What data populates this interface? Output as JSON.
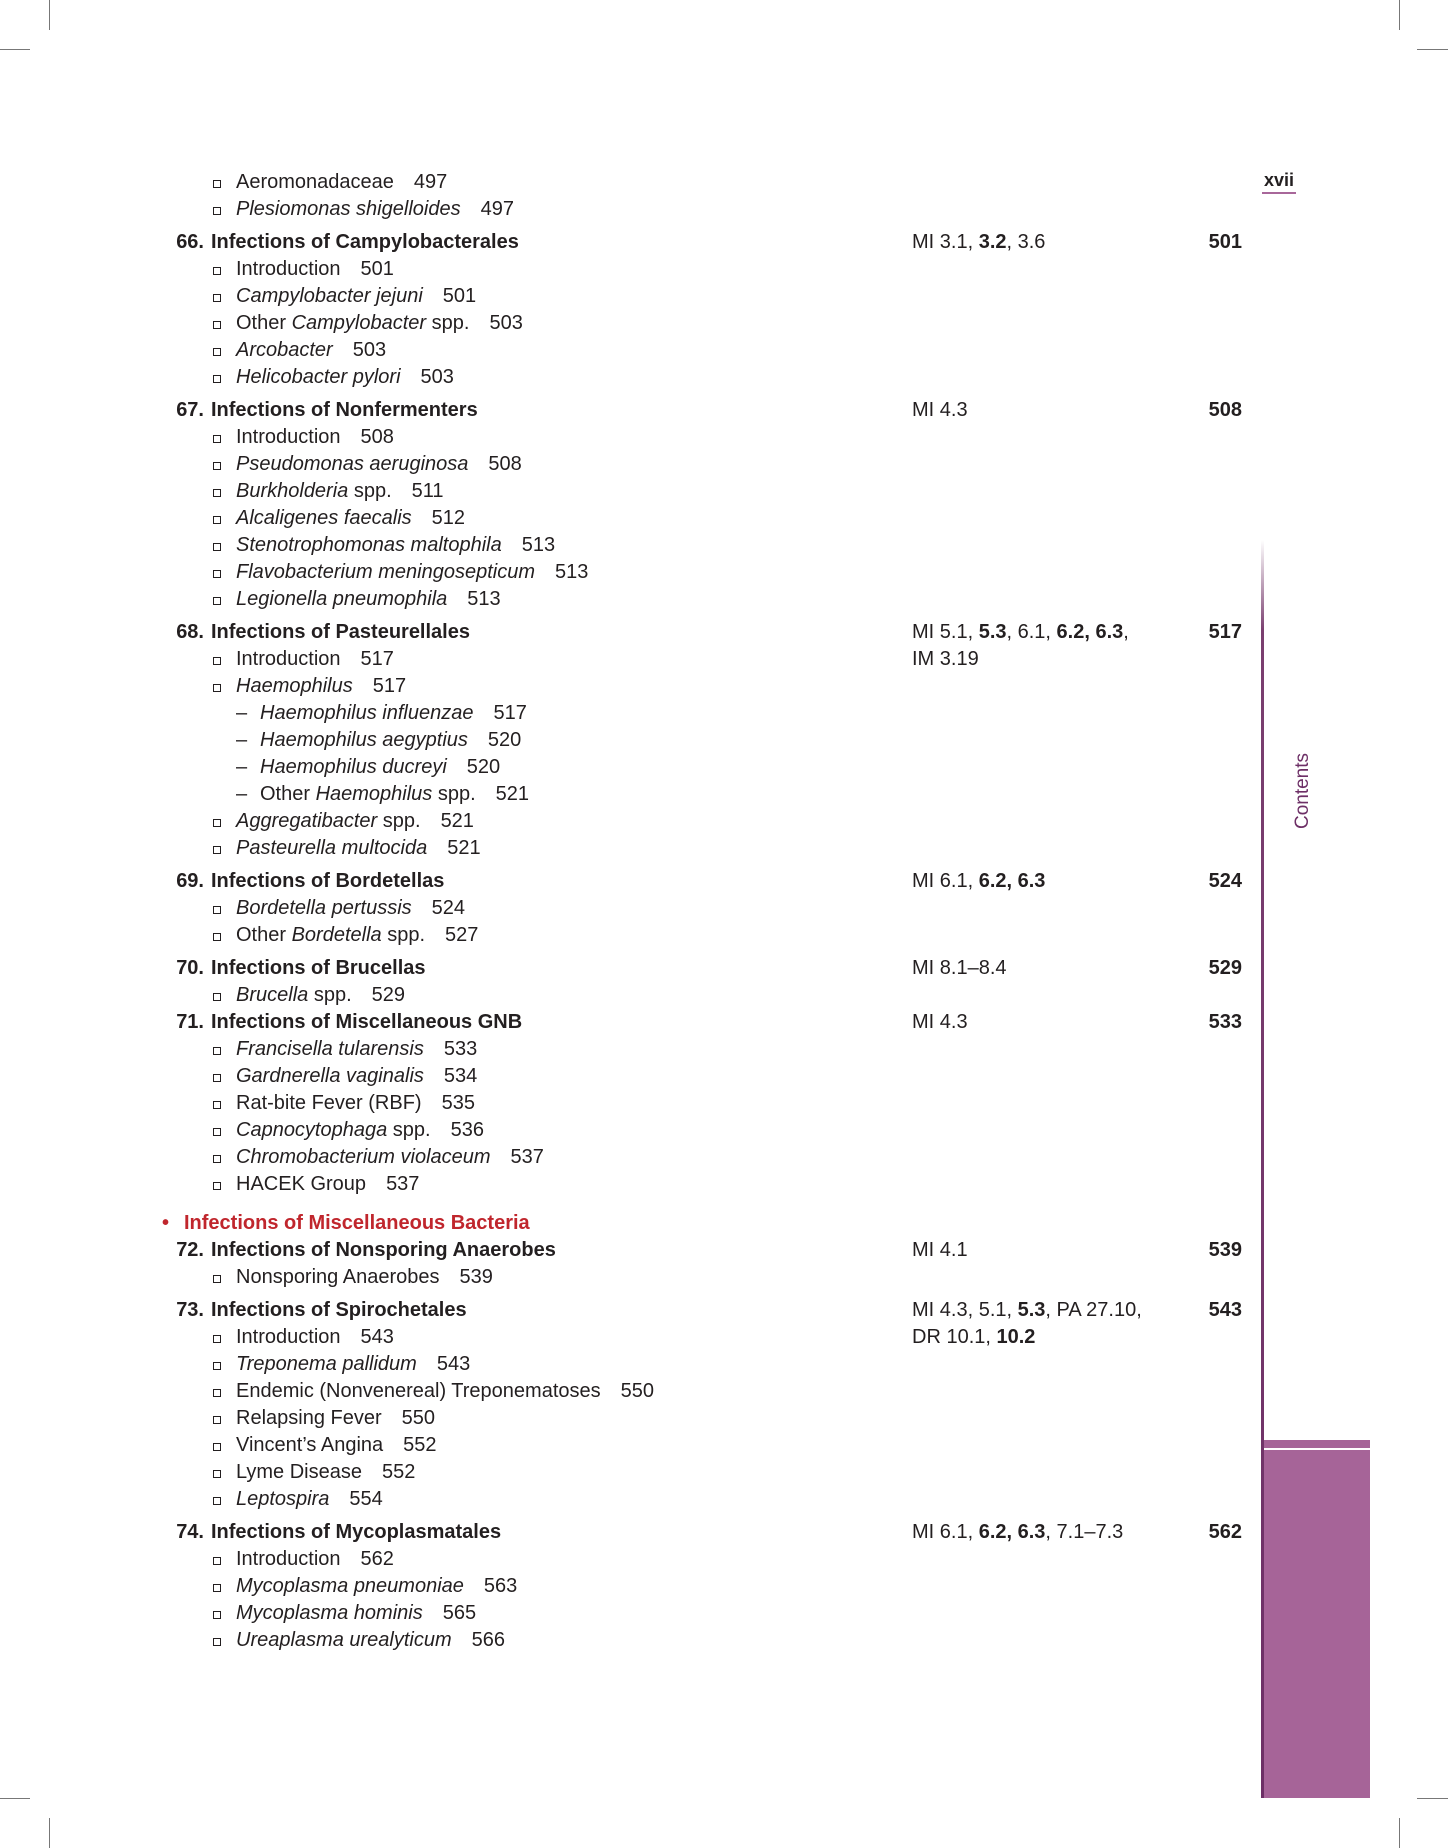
{
  "folio": "xvii",
  "side_label": "Contents",
  "colors": {
    "accent": "#a66498",
    "section_red": "#c0262d",
    "line": "#6d2f66"
  },
  "toc": [
    {
      "type": "subs",
      "items": [
        {
          "kind": "bullet",
          "parts": [
            {
              "t": "Aeromonadaceae"
            }
          ],
          "page": "497"
        },
        {
          "kind": "bullet",
          "parts": [
            {
              "t": "Plesiomonas shigelloides",
              "i": true
            }
          ],
          "page": "497"
        }
      ]
    },
    {
      "type": "chapter",
      "num": "66.",
      "title": "Infections of Campylobacterales",
      "page": "501",
      "refs": [
        [
          {
            "t": "MI 3.1, "
          },
          {
            "t": "3.2",
            "b": true
          },
          {
            "t": ", 3.6"
          }
        ]
      ],
      "items": [
        {
          "kind": "bullet",
          "parts": [
            {
              "t": "Introduction"
            }
          ],
          "page": "501"
        },
        {
          "kind": "bullet",
          "parts": [
            {
              "t": "Campylobacter jejuni",
              "i": true
            }
          ],
          "page": "501"
        },
        {
          "kind": "bullet",
          "parts": [
            {
              "t": "Other "
            },
            {
              "t": "Campylobacter",
              "i": true
            },
            {
              "t": " spp."
            }
          ],
          "page": "503"
        },
        {
          "kind": "bullet",
          "parts": [
            {
              "t": "Arcobacter",
              "i": true
            }
          ],
          "page": "503"
        },
        {
          "kind": "bullet",
          "parts": [
            {
              "t": "Helicobacter pylori",
              "i": true
            }
          ],
          "page": "503"
        }
      ]
    },
    {
      "type": "chapter",
      "num": "67.",
      "title": "Infections of Nonfermenters",
      "page": "508",
      "refs": [
        [
          {
            "t": "MI 4.3"
          }
        ]
      ],
      "items": [
        {
          "kind": "bullet",
          "parts": [
            {
              "t": "Introduction"
            }
          ],
          "page": "508"
        },
        {
          "kind": "bullet",
          "parts": [
            {
              "t": "Pseudomonas aeruginosa",
              "i": true
            }
          ],
          "page": "508"
        },
        {
          "kind": "bullet",
          "parts": [
            {
              "t": "Burkholderia",
              "i": true
            },
            {
              "t": " spp."
            }
          ],
          "page": "511"
        },
        {
          "kind": "bullet",
          "parts": [
            {
              "t": "Alcaligenes faecalis",
              "i": true
            }
          ],
          "page": "512"
        },
        {
          "kind": "bullet",
          "parts": [
            {
              "t": "Stenotrophomonas maltophila",
              "i": true
            }
          ],
          "page": "513"
        },
        {
          "kind": "bullet",
          "parts": [
            {
              "t": "Flavobacterium meningosepticum",
              "i": true
            }
          ],
          "page": "513"
        },
        {
          "kind": "bullet",
          "parts": [
            {
              "t": "Legionella pneumophila",
              "i": true
            }
          ],
          "page": "513"
        }
      ]
    },
    {
      "type": "chapter",
      "num": "68.",
      "title": "Infections of Pasteurellales",
      "page": "517",
      "refs": [
        [
          {
            "t": "MI 5.1, "
          },
          {
            "t": "5.3",
            "b": true
          },
          {
            "t": ", 6.1, "
          },
          {
            "t": "6.2, 6.3",
            "b": true
          },
          {
            "t": ","
          }
        ],
        [
          {
            "t": "IM 3.19"
          }
        ]
      ],
      "items": [
        {
          "kind": "bullet",
          "parts": [
            {
              "t": "Introduction"
            }
          ],
          "page": "517"
        },
        {
          "kind": "bullet",
          "parts": [
            {
              "t": "Haemophilus",
              "i": true
            }
          ],
          "page": "517"
        },
        {
          "kind": "dash",
          "parts": [
            {
              "t": "Haemophilus influenzae",
              "i": true
            }
          ],
          "page": "517"
        },
        {
          "kind": "dash",
          "parts": [
            {
              "t": "Haemophilus aegyptius",
              "i": true
            }
          ],
          "page": "520"
        },
        {
          "kind": "dash",
          "parts": [
            {
              "t": "Haemophilus ducreyi",
              "i": true
            }
          ],
          "page": "520"
        },
        {
          "kind": "dash",
          "parts": [
            {
              "t": "Other "
            },
            {
              "t": "Haemophilus",
              "i": true
            },
            {
              "t": " spp."
            }
          ],
          "page": "521"
        },
        {
          "kind": "bullet",
          "parts": [
            {
              "t": "Aggregatibacter",
              "i": true
            },
            {
              "t": " spp."
            }
          ],
          "page": "521"
        },
        {
          "kind": "bullet",
          "parts": [
            {
              "t": "Pasteurella multocida",
              "i": true
            }
          ],
          "page": "521"
        }
      ]
    },
    {
      "type": "chapter",
      "num": "69.",
      "title": "Infections of Bordetellas",
      "page": "524",
      "refs": [
        [
          {
            "t": "MI 6.1, "
          },
          {
            "t": "6.2, 6.3",
            "b": true
          }
        ]
      ],
      "items": [
        {
          "kind": "bullet",
          "parts": [
            {
              "t": "Bordetella pertussis",
              "i": true
            }
          ],
          "page": "524"
        },
        {
          "kind": "bullet",
          "parts": [
            {
              "t": "Other "
            },
            {
              "t": "Bordetella",
              "i": true
            },
            {
              "t": " spp."
            }
          ],
          "page": "527"
        }
      ]
    },
    {
      "type": "chapter",
      "num": "70.",
      "title": "Infections of Brucellas",
      "page": "529",
      "refs": [
        [
          {
            "t": "MI 8.1–8.4"
          }
        ]
      ],
      "items": [
        {
          "kind": "bullet",
          "parts": [
            {
              "t": "Brucella",
              "i": true
            },
            {
              "t": " spp."
            }
          ],
          "page": "529"
        }
      ]
    },
    {
      "type": "chapter",
      "tight": true,
      "num": "71.",
      "title": "Infections of Miscellaneous GNB",
      "page": "533",
      "refs": [
        [
          {
            "t": "MI 4.3"
          }
        ]
      ],
      "items": [
        {
          "kind": "bullet",
          "parts": [
            {
              "t": "Francisella tularensis",
              "i": true
            }
          ],
          "page": "533"
        },
        {
          "kind": "bullet",
          "parts": [
            {
              "t": "Gardnerella vaginalis",
              "i": true
            }
          ],
          "page": "534"
        },
        {
          "kind": "bullet",
          "parts": [
            {
              "t": "Rat-bite Fever (RBF)"
            }
          ],
          "page": "535"
        },
        {
          "kind": "bullet",
          "parts": [
            {
              "t": "Capnocytophaga",
              "i": true
            },
            {
              "t": " spp."
            }
          ],
          "page": "536"
        },
        {
          "kind": "bullet",
          "parts": [
            {
              "t": "Chromobacterium violaceum",
              "i": true
            }
          ],
          "page": "537"
        },
        {
          "kind": "bullet",
          "parts": [
            {
              "t": "HACEK Group"
            }
          ],
          "page": "537"
        }
      ]
    },
    {
      "type": "section",
      "bullet": "•",
      "title": "Infections of Miscellaneous Bacteria"
    },
    {
      "type": "chapter",
      "tight": true,
      "num": "72.",
      "title": "Infections of Nonsporing Anaerobes",
      "page": "539",
      "refs": [
        [
          {
            "t": "MI 4.1"
          }
        ]
      ],
      "items": [
        {
          "kind": "bullet",
          "parts": [
            {
              "t": "Nonsporing Anaerobes"
            }
          ],
          "page": "539"
        }
      ]
    },
    {
      "type": "chapter",
      "num": "73.",
      "title": "Infections of Spirochetales",
      "page": "543",
      "refs": [
        [
          {
            "t": "MI 4.3, 5.1, "
          },
          {
            "t": "5.3",
            "b": true
          },
          {
            "t": ", PA 27.10,"
          }
        ],
        [
          {
            "t": "DR 10.1, "
          },
          {
            "t": "10.2",
            "b": true
          }
        ]
      ],
      "items": [
        {
          "kind": "bullet",
          "parts": [
            {
              "t": "Introduction"
            }
          ],
          "page": "543"
        },
        {
          "kind": "bullet",
          "parts": [
            {
              "t": "Treponema pallidum",
              "i": true
            }
          ],
          "page": "543"
        },
        {
          "kind": "bullet",
          "parts": [
            {
              "t": "Endemic (Nonvenereal) Treponematoses"
            }
          ],
          "page": "550"
        },
        {
          "kind": "bullet",
          "parts": [
            {
              "t": "Relapsing Fever"
            }
          ],
          "page": "550"
        },
        {
          "kind": "bullet",
          "parts": [
            {
              "t": "Vincent’s Angina"
            }
          ],
          "page": "552"
        },
        {
          "kind": "bullet",
          "parts": [
            {
              "t": "Lyme Disease"
            }
          ],
          "page": "552"
        },
        {
          "kind": "bullet",
          "parts": [
            {
              "t": "Leptospira",
              "i": true
            }
          ],
          "page": "554"
        }
      ]
    },
    {
      "type": "chapter",
      "num": "74.",
      "title": "Infections of Mycoplasmatales",
      "page": "562",
      "refs": [
        [
          {
            "t": "MI 6.1, "
          },
          {
            "t": "6.2, 6.3",
            "b": true
          },
          {
            "t": ", 7.1–7.3"
          }
        ]
      ],
      "items": [
        {
          "kind": "bullet",
          "parts": [
            {
              "t": "Introduction"
            }
          ],
          "page": "562"
        },
        {
          "kind": "bullet",
          "parts": [
            {
              "t": "Mycoplasma pneumoniae",
              "i": true
            }
          ],
          "page": "563"
        },
        {
          "kind": "bullet",
          "parts": [
            {
              "t": "Mycoplasma hominis",
              "i": true
            }
          ],
          "page": "565"
        },
        {
          "kind": "bullet",
          "parts": [
            {
              "t": "Ureaplasma urealyticum",
              "i": true
            }
          ],
          "page": "566"
        }
      ]
    }
  ]
}
